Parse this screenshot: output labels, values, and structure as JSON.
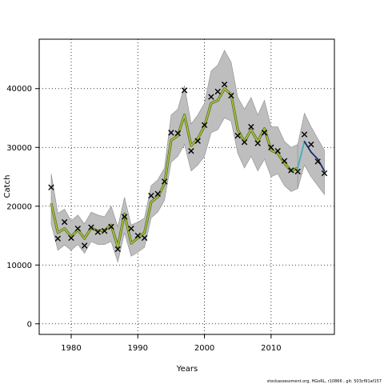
{
  "chart_data": {
    "type": "line",
    "xlabel": "Years",
    "ylabel": "Catch",
    "xlim": [
      1975.2,
      2019.5
    ],
    "ylim": [
      -1800,
      48400
    ],
    "grid": true,
    "x_ticks": [
      1980,
      1990,
      2000,
      2010
    ],
    "y_ticks": [
      0,
      10000,
      20000,
      30000,
      40000
    ],
    "footer": "stockassessment.org, HGoRL, r10866 , git: 503cf91af157",
    "colors": {
      "band": "#bebebe",
      "fit_outer": "#5c6a2f",
      "fit_inner": "#a4c639",
      "forecast_teal": "#40b0c0",
      "forecast_navy": "#1f2a6b",
      "observed": "#000000",
      "grid": "#000000"
    },
    "estimate": {
      "x": [
        1977,
        1978,
        1979,
        1980,
        1981,
        1982,
        1983,
        1984,
        1985,
        1986,
        1987,
        1988,
        1989,
        1990,
        1991,
        1992,
        1993,
        1994,
        1995,
        1996,
        1997,
        1998,
        1999,
        2000,
        2001,
        2002,
        2003,
        2004,
        2005,
        2006,
        2007,
        2008,
        2009,
        2010,
        2011,
        2012,
        2013,
        2014
      ],
      "y": [
        20500,
        15500,
        16200,
        14800,
        16000,
        14500,
        16300,
        15800,
        15900,
        16800,
        13100,
        18700,
        13700,
        14600,
        15500,
        20700,
        21600,
        23800,
        31200,
        32000,
        35500,
        30300,
        31500,
        33600,
        37500,
        38000,
        40000,
        39000,
        33000,
        31000,
        33000,
        31000,
        33200,
        29500,
        29000,
        27300,
        26000,
        26500
      ],
      "lower": [
        17000,
        12500,
        13400,
        12500,
        13500,
        12000,
        14000,
        13500,
        13500,
        14000,
        10500,
        15500,
        11500,
        12200,
        13000,
        18000,
        19000,
        21000,
        27500,
        28500,
        30500,
        26000,
        27000,
        28500,
        32500,
        33000,
        35000,
        34500,
        29000,
        26500,
        28500,
        26000,
        28000,
        25000,
        25500,
        23500,
        22500,
        23000
      ],
      "upper": [
        25500,
        18800,
        19500,
        17500,
        18500,
        17000,
        19000,
        18500,
        18200,
        20000,
        16500,
        21500,
        16800,
        17300,
        18000,
        23500,
        24500,
        26500,
        35500,
        36500,
        40500,
        34000,
        35500,
        37500,
        43000,
        44000,
        46500,
        44500,
        38500,
        36500,
        38500,
        35500,
        38000,
        33500,
        33500,
        31000,
        30000,
        30500
      ]
    },
    "forecast": {
      "x": [
        2014,
        2015,
        2016,
        2017,
        2018
      ],
      "y": [
        26500,
        31000,
        29200,
        28000,
        26000
      ],
      "lower": [
        23000,
        27000,
        25000,
        23500,
        22000
      ],
      "upper": [
        30500,
        35800,
        33500,
        31500,
        29500
      ]
    },
    "observed": {
      "x": [
        1977,
        1978,
        1979,
        1980,
        1981,
        1982,
        1983,
        1984,
        1985,
        1986,
        1987,
        1988,
        1989,
        1990,
        1991,
        1992,
        1993,
        1994,
        1995,
        1996,
        1997,
        1998,
        1999,
        2000,
        2001,
        2002,
        2003,
        2004,
        2005,
        2006,
        2007,
        2008,
        2009,
        2010,
        2011,
        2012,
        2013,
        2014,
        2015,
        2016,
        2017,
        2018
      ],
      "y": [
        23200,
        14500,
        17300,
        14600,
        16200,
        13300,
        16400,
        15600,
        15800,
        16500,
        12700,
        18200,
        16200,
        15000,
        14600,
        21800,
        22100,
        24200,
        32500,
        32400,
        39700,
        29400,
        31100,
        33800,
        38600,
        39500,
        40700,
        38800,
        32000,
        30900,
        33500,
        30700,
        32500,
        30000,
        29400,
        27700,
        26100,
        25900,
        32200,
        30500,
        27600,
        25600
      ]
    }
  }
}
